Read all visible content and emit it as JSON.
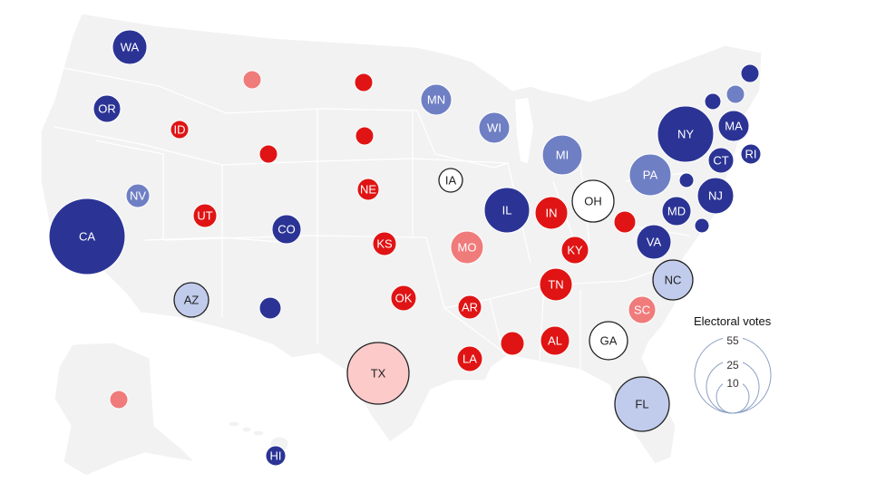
{
  "colors": {
    "safe_dem": "#2b3495",
    "likely_dem": "#6f7fc4",
    "lean_dem": "#c1ccec",
    "tossup": "#ffffff",
    "lean_rep": "#fdcaca",
    "likely_rep": "#f07b7b",
    "safe_rep": "#e01414",
    "land": "#f2f2f2",
    "legend_circle": "#8aa1c4"
  },
  "legend": {
    "title": "Electoral votes",
    "values": [
      55,
      25,
      10
    ]
  },
  "states": [
    {
      "id": "WA",
      "label": "WA",
      "rating": "safe_dem"
    },
    {
      "id": "OR",
      "label": "OR",
      "rating": "safe_dem"
    },
    {
      "id": "CA",
      "label": "CA",
      "rating": "safe_dem"
    },
    {
      "id": "NV",
      "label": "NV",
      "rating": "likely_dem"
    },
    {
      "id": "ID",
      "label": "ID",
      "rating": "safe_rep"
    },
    {
      "id": "MT",
      "label": "",
      "rating": "likely_rep"
    },
    {
      "id": "WY",
      "label": "",
      "rating": "safe_rep"
    },
    {
      "id": "UT",
      "label": "UT",
      "rating": "safe_rep"
    },
    {
      "id": "CO",
      "label": "CO",
      "rating": "safe_dem"
    },
    {
      "id": "AZ",
      "label": "AZ",
      "rating": "lean_dem"
    },
    {
      "id": "NM",
      "label": "",
      "rating": "safe_dem"
    },
    {
      "id": "ND",
      "label": "",
      "rating": "safe_rep"
    },
    {
      "id": "SD",
      "label": "",
      "rating": "safe_rep"
    },
    {
      "id": "NE",
      "label": "NE",
      "rating": "safe_rep"
    },
    {
      "id": "KS",
      "label": "KS",
      "rating": "safe_rep"
    },
    {
      "id": "OK",
      "label": "OK",
      "rating": "safe_rep"
    },
    {
      "id": "TX",
      "label": "TX",
      "rating": "lean_rep"
    },
    {
      "id": "MN",
      "label": "MN",
      "rating": "likely_dem"
    },
    {
      "id": "IA",
      "label": "IA",
      "rating": "tossup"
    },
    {
      "id": "MO",
      "label": "MO",
      "rating": "likely_rep"
    },
    {
      "id": "AR",
      "label": "AR",
      "rating": "safe_rep"
    },
    {
      "id": "LA",
      "label": "LA",
      "rating": "safe_rep"
    },
    {
      "id": "WI",
      "label": "WI",
      "rating": "likely_dem"
    },
    {
      "id": "IL",
      "label": "IL",
      "rating": "safe_dem"
    },
    {
      "id": "MI",
      "label": "MI",
      "rating": "likely_dem"
    },
    {
      "id": "IN",
      "label": "IN",
      "rating": "safe_rep"
    },
    {
      "id": "OH",
      "label": "OH",
      "rating": "tossup"
    },
    {
      "id": "KY",
      "label": "KY",
      "rating": "safe_rep"
    },
    {
      "id": "TN",
      "label": "TN",
      "rating": "safe_rep"
    },
    {
      "id": "MS",
      "label": "",
      "rating": "safe_rep"
    },
    {
      "id": "AL",
      "label": "AL",
      "rating": "safe_rep"
    },
    {
      "id": "GA",
      "label": "GA",
      "rating": "tossup"
    },
    {
      "id": "FL",
      "label": "FL",
      "rating": "lean_dem"
    },
    {
      "id": "SC",
      "label": "SC",
      "rating": "likely_rep"
    },
    {
      "id": "NC",
      "label": "NC",
      "rating": "lean_dem"
    },
    {
      "id": "VA",
      "label": "VA",
      "rating": "safe_dem"
    },
    {
      "id": "WV",
      "label": "",
      "rating": "safe_rep"
    },
    {
      "id": "PA",
      "label": "PA",
      "rating": "likely_dem"
    },
    {
      "id": "NY",
      "label": "NY",
      "rating": "safe_dem"
    },
    {
      "id": "MD",
      "label": "MD",
      "rating": "safe_dem"
    },
    {
      "id": "DE",
      "label": "",
      "rating": "safe_dem"
    },
    {
      "id": "DC",
      "label": "",
      "rating": "safe_dem"
    },
    {
      "id": "NJ",
      "label": "NJ",
      "rating": "safe_dem"
    },
    {
      "id": "CT",
      "label": "CT",
      "rating": "safe_dem"
    },
    {
      "id": "RI",
      "label": "RI",
      "rating": "safe_dem"
    },
    {
      "id": "MA",
      "label": "MA",
      "rating": "safe_dem"
    },
    {
      "id": "VT",
      "label": "",
      "rating": "safe_dem"
    },
    {
      "id": "NH",
      "label": "",
      "rating": "likely_dem"
    },
    {
      "id": "ME",
      "label": "",
      "rating": "safe_dem"
    },
    {
      "id": "AK",
      "label": "",
      "rating": "likely_rep"
    },
    {
      "id": "HI",
      "label": "HI",
      "rating": "safe_dem"
    }
  ]
}
